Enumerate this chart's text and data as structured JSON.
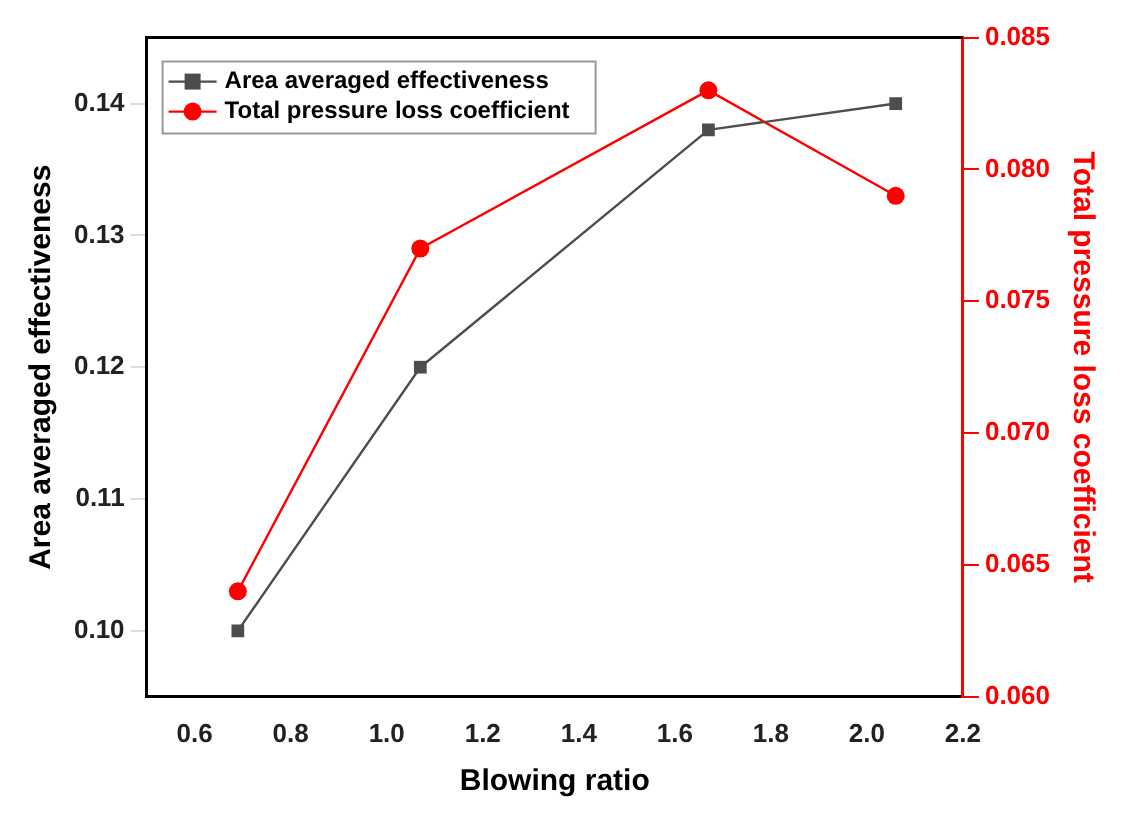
{
  "chart_data": {
    "type": "line",
    "xlabel": "Blowing ratio",
    "ylabel": "Area averaged effectiveness",
    "y2label": "Total pressure loss coefficient",
    "x": [
      0.69,
      1.07,
      1.67,
      2.06
    ],
    "series": [
      {
        "name": "Area averaged effectiveness",
        "color": "#4d4d4d",
        "marker": "square",
        "values": [
          0.1,
          0.12,
          0.138,
          0.14
        ]
      },
      {
        "name": "Total pressure loss coefficient",
        "color": "#ff0000",
        "marker": "circle",
        "axis": "y2",
        "values": [
          0.064,
          0.077,
          0.083,
          0.079
        ]
      }
    ],
    "xlim": [
      0.5,
      2.2
    ],
    "xticks": [
      0.6,
      0.8,
      {
        "value": 1,
        "label": "1.0"
      },
      1.2,
      1.4,
      1.6,
      1.8,
      {
        "value": 2,
        "label": "2.0"
      },
      2.2
    ],
    "ylim": [
      0.095,
      0.145
    ],
    "yticks": [
      {
        "value": 0.1,
        "label": "0.10"
      },
      0.11,
      0.12,
      0.13,
      0.14
    ],
    "y2lim": [
      0.06,
      0.085
    ],
    "y2ticks": [
      {
        "value": 0.06,
        "label": "0.060"
      },
      0.065,
      {
        "value": 0.07,
        "label": "0.070"
      },
      0.075,
      {
        "value": 0.08,
        "label": "0.080"
      },
      0.085
    ],
    "legend": "top left",
    "grid": false,
    "line_style": "solid"
  }
}
